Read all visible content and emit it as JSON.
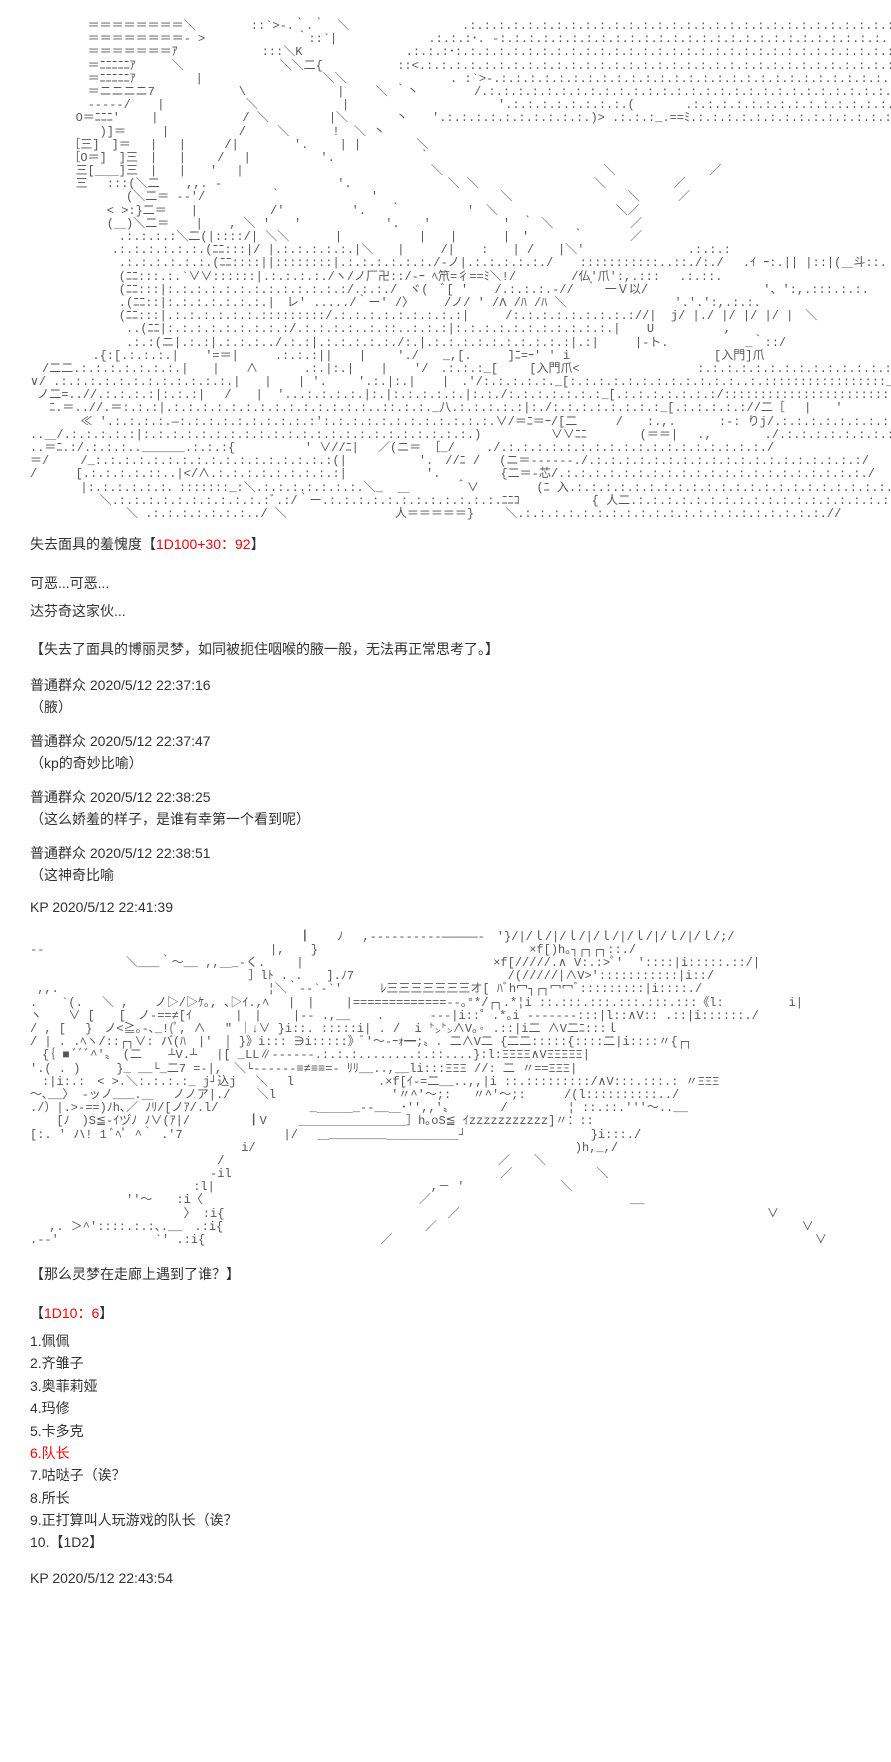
{
  "ascii1": "　 　 　 ＝＝＝＝＝＝＝＝＼　　　　 ::`>-.｀.｀　＼　　　　 　 　 　 .:.:.:.:.:.:.:.:.:.:.:.:.:.:.:.:.:.:.:.:.:.:.:.:.:.:.:.:.:.:.:.:.:.:.:.:＼\n　 　 　 ＝＝＝＝＝＝＝＝- >　　　　　　　 ｀::`|　　　　　　　 .:.:.:･. -:.:.:.:.:.:.:.:.:.:.:.:.:.:.:.:.:.:.:.:.:.:.:.:.:.:.:.:.:.:.:.:.:.:.:.:.:＼\n　 　 　 ＝＝＝＝＝＝＝ｱ　　　　　　　:::＼K 　 　 　 　 　 .:.:.:･:.:.:.:.:.:.:.:.:.:.:.:.:.:.:.:.:.:.:.:.:.:.:.:.:.:.:.:.:.:.:.:.:.:.:.:.:.:.:.:.:.:.:＼＼\n　 　 　 ＝ﾆﾆﾆﾆﾆｱ　　　＼　　　　　　　　＼＼二{　　　　 　 ::<.:.:.:.:.:.:.:.:.:.:.:.:.:.:.:.:.:.:.:.:.:.:.:.:.:.:.:.:.:.:.:.:.:.:.:.:.:.:.:.:.:.:.:.:.:.:＼＼\n　 　 　 ＝ﾆﾆﾆﾆﾆｱ　　　　　|　　　　　　　　　　＼＼ 　 　 　 　 　 . :`>-.:.:.:.:.:.:.:.:.:.:.:.:.:.:.:.:.:.:.:.:.:.:.:.:.:.:.:.:.:.:.:.:.:.:.:.:.:.:.:.:.:＼\n　 　 　 ＝ニニニニ7 　 　 　 　 \\ 　　　　　　　|　　 ＼ ｀丶　　　　 /.:.:.:.:.:.:.:.:.:.:.:.:.:.:.:.:.:.:.:.:.:.:.:.:.:.:.:.:.:.:.:.:.:.:.:.:.:.:.:.:.:.:.:.:.:.:.:.:＼\n　 　 　 -----/ 　 |　　　 　 　 ＼ 　 　 　 　 |  　 　 　 　 　 　 　 '.:.:.:.:.:.:.:.:.(　　 　 .:.:.:.:.:.:.:.:.:.:.:.:.:.:.:.:.:.:.:.:.:.:.:.:.:.:.:.:.:.:.:.:.:.:.:.:.:＼\n 　 　 O＝ﾆﾆﾆ'　　 | 　 　 　 　 / ＼　　　　　|＼　　　　丶　　'.:.:.:.:.:.:.:.:.:.:.)> .:.:.:_.==ﾐ.:.:.:.:.:.:.:.:.:.:.:.:.:.:.:.:.:.:.:.:.:.:.:.:.:.:.:.:.:.:：＼\n　　 　 　 )]＝　　　|　　 　 　 /　　 ＼　　　 !  ＼ 丶\n　 　 ［三]　]＝ 　|   |　 　 /|　　　　 '.　　 | |　　　　 ＼\n　 　 ［O＝]　]三　|   |　　 / 　|　　 　 　 '.　　　　　　　｀\n 　 　 三[＿＿]三　|   |　　′ 　|  　 　 　 　 　 　 　 　 　 ＼ 　 　 　 　 　 　 　 　 ＼　　　　 　 　 ／\n 　 　 三　 :::(＼二　  ,,. - 　　　　　　　　　'.　 　 　 　 　 ＼ ＼　　　　　　　　　 ＼　　　　　 ／\n　 　 　 　 　 (＼二＝ --'/ 　 　 　 ｀　　 　 　 　 ' 　 　 　 　 　 　 ＼　　　　　　　　　 ＼　 　 ／\n　 　 　 　 < >:}二＝　　|  　 　 　 /′　　　　　 '.　　｀ 　 　 　 '　＼　　　　　　 　 　 ＼／\n　 　 　 　 (＿)＼二＝ 　 | 　 , ＼ '　　' 　 　 　 　 '.　　'  　 　 　 '　｀ ＼　 　 　 　 ／\n　　 　 　 　 .:.:.:.:＼二(|::::/| ＼＼ 　 　 |　 　 　 　 |　　| 　 　 |　'　　　 ｀ 　 　 ／\n　　　 　 　 .:.:.:.:.:.:.(ﾆﾆ:::|/ |.:.:.:.:.:.|＼　　|　　　/| 　 :　　| /　　|＼' 　 　 　 　 　 .:.:.:　 　 　 　 　 　 　 　 　 .--  .\n　　 　 　 　 .:.:.:.:.:.:.(ﾆﾆ::::||::::::::|.:.:.:.:.:.:./-ノ|.:.:.:.:.:./ 　 :::::::::::..::./:./　 .ｲ ｰ:.|| |::|(＿斗::. 　 　 .:[\n　　 　 　 　 (ﾆﾆ:::.:.`∨∨::::::|.:.:.:.:./ヽ/ノ厂卍::/-ｰ ﾍ笊=彳==ﾐ＼!/　　　　 /仏'爪':,.:::　 .:.::.\n　　 　 　 　 (ﾆﾆ:::|:.:.:.:.:.:.:.:.:.:.:.:.:/.:.:./　ヾ(　ﾞ[ ' 　 /.:.:.:.-//　｀ 一Ｖ以/　 　 　 　 　 　 '、':,.:::.:.:.\n　　 　 　 　 .(ﾆﾆ::|:.:.:.:.:.:.:.|　レ' ...../｀ー' /〉　　　/ノ/ ' /Λ /ﾊ /ﾊ ＼　　 　 　 　 　 '.'.':,.:.:.\n　　 　 　 　 (ﾆﾆ:::|.:.:.:.:.:.:.:::::::::/.:.:.:.:.:.:.:.:.:|　　　/:.:.:.:.:.:.:.:.://|  j/ |./ |/ |/ |/ |　＼ 　 　 　 　 '.'.'.,\n　 　 　 　 　 ..(ﾆﾆ|:.:.:.:.:.:.:.:.:/.:.:.:.:..:.::..:.:.:|:.:.:.:.:.:.:.:.:.:.:.| 　 U　　 　 　 , 　 　 　 　 　 　 　 　 }:.(\n　 　 　 　 　 .:.:(ニ|.:.:|.:.:.:../.:.:|.:.:.:.:.:./:.|.:.:.:.:.:.:.:.:.:.:|.:|　　　|-ト.　 　 　 　 _｀::/　 　 　 　 　 　 /:.:.:..\n　　 　 　.{:[.:.:.:.| 　 ′=＝|　　　.:.:.:|| 　 |　　 './　　_,[.　　　]ﾆ=ｰ' ' i　　　　　 　 　 　 　 [入門]爪\n　/二二.:.:.:.:.:.:.:.|　　| 　 ∧ 　 　 .:.|:.| 　 | 　 '/　.:.:.:_[　　 [入門爪<   　 　 　 　 　 :.:.:.:.:.:.:.:.:.:.:.:.:.:.:.:.:.:.:.:.:\n∨/ .:.:.:.:.:.:.:.:.:.:.:.:.|　　| 　 | '. 　　'.:.|:.| 　 |　.'/:.:.:.:.:._[:.:.:.:.:.:.:.:.:.:.:.:..:.:::::::::::::::::_ 　 　 　 .:.:.:.:.:.:.:.:.:.:.:.:.:.:.:.:.:.:.:.:.:.:.:.)\n ノ二=..//.:.:.:.:|:.:.:|　 /　　|  '...:.:.:.:.|:.|:.:.:.:.:.|:.:./:.:.:.:.:.:.:_[.:.:.:.:.:.:.:/:::::::::::::::::::::::-ノ 　 　 .:.:.:.:.:.:.:.:.:.:.:.:.:.:.:.:.:.:.:.:.:.:.:.:.:/\n　 ﾆ.＝..//.＝:.:.:|.:.:.:.:.:.:.:.:.:.:.:.:.:.:..::.:.:._八.:.:.:.:.:|:./:.:.:.:.:.:.:.:_[.:.:.:.:.://二［　 |　　′  　 　 .:.:.:.:.:.:.:.:.:.:.:.:.:.:.:.:.:.:.:.:.:.:.:.:.:./\n　　 　 ≪ '.:.:.:.:.―:.:.:.:.:.:.:.:.:.:':.:.:.:.:.:.:.:.:.:.:.:.∨/＝ﾆ＝ｰ/[二 　　 /　　:.,.　　　 :-: りj/.:.:.:.:.:.:.:.:.:.:.:.:.:.:.:.:.:.:./\n..＿/.:.:.:.:.:|:.:.:.:.:.:.:.:.:.:.:.:.:.:.:.:.:.:.:.:.:.:.:.)　　 　 　 ∨∨ﾆﾆ 　 　  (＝＝|　 .,  　 　 ./.:.:.:.:.:.:.:.:.:.:.:.:.:.:.:.:.:.:.:./\n..＝ﾆ.:/.:.:.:..______.:.:.:{　　 　 　 ' ∨//ﾆ|　 ／(ニ＝ ［_/　　 ./.:.:.:.:.:.:.:.:.:.:.:.:.:.:.:.:.:.:./\n＝/　　 /_:.:.:.:.:.:.:.:.:.:.:.:.:.:.:.:.:(|　　　　　　'.　//ﾆ /　 (ニ＝------./.:.:.:.:.:.:.:.:.:.:.:.:.:.:.:.:.:.:.:/\n/　 　 [.:.:.:.:.::..|</∧.:.:.:.:.:.:.:.:.:|　　　　　　 '.　　　　　{二＝-芯/.:.:.:.:.:.:.:.:.:.:.:.:.:.:.:.:.:.:.:.:.:./\n　　 　 |:.:.:.:.:.:．:::::::_:＼.:.:.:.:.:.:.:.＼_  ＿ 　 　 ＾∨　 　 　 (ﾆ 入.:.:.:.:.:.:.:.:.:.:.:.:.:.:.:.:.:.:.:.:.:.:.:.:/\n　　 　 　 ＼.:.:.:.:.:.:.:.:.:.:.:ﾞ.:/｀ー.:.:.:.:.:.:.:.:.:.:.:.:.ﾆﾆｺ　　　　　　{ 人二.:.:.:.:.:.:.:.:.:.:.:.:.:.:.:.:.:.:.:.:.:.:.:./\n　 　 　 　 　 ＼ .:.:.:.:.:.:.:../ ＼　　　　　　　　　人＝＝＝＝＝}　　 ＼.:.:.:.:.:.:.:.:.:.:.:.:.:.:.:.:.:.:.:.:.:.//",
  "shame_label": "失去面具的羞愧度【",
  "shame_roll": "1D100+30：92",
  "shame_close": "】",
  "hate_line1": "可恶...可恶...",
  "hate_line2": "达芬奇这家伙...",
  "narration1": "【失去了面具的博丽灵梦，如同被扼住咽喉的腋一般，无法再正常思考了。】",
  "c1_author": "普通群众 2020/5/12 22:37:16",
  "c1_text": "（腋）",
  "c2_author": "普通群众 2020/5/12 22:37:47",
  "c2_text": "（kp的奇妙比喻）",
  "c3_author": "普通群众 2020/5/12 22:38:25",
  "c3_text": "（这么娇羞的样子，是谁有幸第一个看到呢）",
  "c4_author": "普通群众 2020/5/12 22:38:51",
  "c4_text": "（这神奇比喻",
  "kp1_author": "KP 2020/5/12 22:41:39",
  "ascii2": "　 　 　 　 　 　 　 　 　 　 　 　 　 　 ┃ 　 ﾉ　 ,----------―――――-　'}/|/ｌ/|/ｌ/|/ｌ/|/ｌ/|/ｌ/|/ｌ/;/\n--  　 　 　 　  　　 　 　 　 　 　 |, 　 }　　　　　　　　　　　　　　　　　 ×f[)h｡┐┌┐┌┐::./\n　 　 　 　 　 ＼___｀〜__ ,,＿_-く.　　 |　　　　 　 　 　 　 　 　 　 ×f[/////.∧ V:.:>ﾟ'  '::::|i:::::.::/|\n　　　　　　　　 　 　 　 　 　 　 ］lﾄ . .　　].ﾉ7　 　 　 　 　 　 　 　 /(/////|∧V>':::::::::::|i::/\n ,,.　　　　 　 　 　 　 　 　 　 　 ¦＼｀--`-`'　 　 ﾚ三三三三三三三オ[ ﾊﾞh冖┐┌┐冖冖ﾞ:::::::::|i::::./\n.　　`(.　 ＼ , 　 ノ▷/▷ｹ｡, ､▷ｲ.,ﾍ　 |　|　　 |=============--｡°*/┌┐.*¦i ::.:::.:::.:::.:::.:::《l: 　 　 　 i|\nヽ 　 ∨ [　　[　ノ-==≠[ｲ　　　 |　|　　 |-- .,__ 　 . 　 　 ---|i::゜.*｡i -------:::|l::∧V:: .::|i::::::./\n/ , [　 }　ノ<≧｡-､_!(ﾟ, ∧　 \" ｜↓∨ }i::. :::::i| . /  i ㌧㌧∧V｡◦ .::|i二 ∧V二ﾆ:::ｌ\n/ | . .ﾍヽ/::┌┐∨: バ(ﾊ　|'　│ }》i::: ∋i:::::》ﾞ'〜-ｰｫ━;〟. 二∧V二 {二二:::::{::::二|i::::〃{┌┐\n　{｛ ■ ﾞﾞﾞ^'〟　(二  　┴V.┴　 |[ _LL∥------.:.:.:........:.::....}:l:ΞΞΞΞ∧VΞΞΞΞΞ|\n'.( . )　　　}_ __└_二7 =-|,　＼└------≡≠≡≡=- ﾘﾘ__..,__li:::ΞΞΞ //: 二 〃==ΞΞΞ|\n　:|i:.:　< >.＼:.:.:.:_ j┘込j　 ＼　 l　　　　　　　.×f[ｲ-=二__..,,|i ::.:::::::::/∧V:::.:::.: 〃ΞΞΞ\n〜､__〉 -ッノ___.＿　 ノノア|./ 　 ＼l　 　 　 　 　 　 '〃^'〜;:   〃^'〜;:　 　 /(l::::::::::../\n./）|.>-==)ﾉh､／ ﾉﾘ/[ノｱ/.l/　   　 　 　 _＿＿＿_--__＿･'',,'〟 　 　 /　　　　　¦ ::.::.'''〜..__\n 　 [ﾉ　)S≦-ｲヅﾉ ﾉ∨(ｱ|/ 　 　 　┃V 　　＿＿＿＿＿＿＿＿＿］h｡oS≦ ｲzzzzzzzzzzz]〃：::\n[:. ' ハ! 1 ﾞﾍﾟ ^｀ .'7　 　 　 　 　　|/　 ＿________＿＿＿＿＿＿┘　　　　　 　 　 　 }i:::./\n　 　 　 　 　 　 　 　 　 　 　 i/　　　　　　　　　　　　　　　　　　　　　　　　　　 )h,_,/\n　　　　　　　　　　　　　　　 /　　　 　 　 　 　 　 　 　 　 　 　 　 　 ／　　＼\n　 　  　 　 　 　 　 　 　 -il　 　 　 　 　 　 　 　 　 　 　 　 　 　 ／ 　 　 　 　 ＼\n　　　　　　　　　　　　　 :l|　　　　　　　　　　　　　　　　　　,－ '　　　　　　　　＼\n　 　 　 　 　 ''〜　　:i〈　　　　　　　　　　　　　　　　　　／ 　 　 　 　 　 　 　 　 　 　 __\n　 　 　 　 　 　 　 　 〉 :i{　　 　 　 　 　 　 　 　 　 　 　 ／　 　 　 　 　 　 　 　 　 　 　 　 　 　 　 　 ∨\n　 ,. ＞^'::::.:.:､.__　.:i{　　　　　　　　　　　　　 　 　 ／　 　 　 　 　 　 　 　 　 　 　 　 　 　 　 　 　 　 　 ∨\n.--' 　 　 　 　 　`' .:i{　　　　　　　　　　　　　　 ／　 　 　 　 　 　 　 　 　 　 　 　 　 　 　 　 　 　 　 　 　 　 ∨",
  "narration2": "【那么灵梦在走廊上遇到了谁？】",
  "roll2_open": "【",
  "roll2_text": "1D10：6",
  "roll2_close": "】",
  "opt1": "1.佩佩",
  "opt2": "2.齐雏子",
  "opt3": "3.奥菲莉娅",
  "opt4": "4.玛修",
  "opt5": "5.卡多克",
  "opt6": "6.队长",
  "opt7": "7.咕哒子（诶？",
  "opt8": "8.所长",
  "opt9": "9.正打算叫人玩游戏的队长（诶？",
  "opt10": "10.【1D2】",
  "kp2_author": "KP 2020/5/12 22:43:54"
}
